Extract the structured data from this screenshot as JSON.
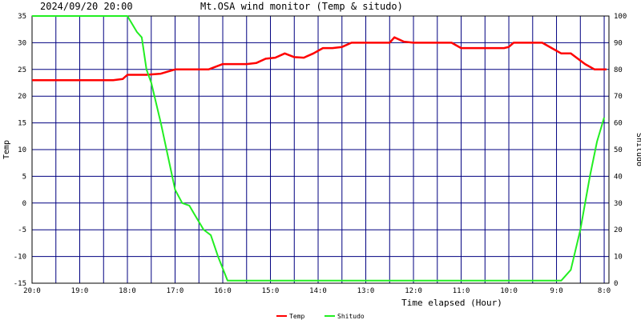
{
  "chart_data": {
    "type": "line",
    "title": "2024/09/20 20:00",
    "subtitle": "Mt.OSA wind monitor (Temp & situdo)",
    "xlabel": "Time elapsed (Hour)",
    "ylabel_left": "Temp",
    "ylabel_right": "Shitudo",
    "ylim_left": [
      -15,
      35
    ],
    "ylim_right": [
      0,
      100
    ],
    "xlim": [
      20,
      7.9
    ],
    "x_reversed": true,
    "grid": true,
    "legend_position": "bottom-center",
    "y_ticks_left": [
      "35",
      "30",
      "25",
      "20",
      "15",
      "10",
      "5",
      "0",
      "-5",
      "-10",
      "-15"
    ],
    "y_ticks_right": [
      "100",
      "90",
      "80",
      "70",
      "60",
      "50",
      "40",
      "30",
      "20",
      "10",
      "0"
    ],
    "x_ticks": [
      {
        "value": 20,
        "label": "20:0"
      },
      {
        "value": 19,
        "label": "19:0"
      },
      {
        "value": 18,
        "label": "18:0"
      },
      {
        "value": 17,
        "label": "17:0"
      },
      {
        "value": 16,
        "label": "16:0"
      },
      {
        "value": 15,
        "label": "15:0"
      },
      {
        "value": 14,
        "label": "14:0"
      },
      {
        "value": 13,
        "label": "13:0"
      },
      {
        "value": 12,
        "label": "12:0"
      },
      {
        "value": 11,
        "label": "11:0"
      },
      {
        "value": 10,
        "label": "10:0"
      },
      {
        "value": 9,
        "label": "9:0"
      },
      {
        "value": 8,
        "label": "8:0"
      }
    ],
    "series": [
      {
        "name": "Temp",
        "axis": "left",
        "color": "#ff0000",
        "x": [
          20,
          19.5,
          19,
          18.5,
          18.3,
          18.1,
          18,
          17.7,
          17.6,
          17.3,
          17,
          16.9,
          16.7,
          16.3,
          16,
          15.9,
          15.7,
          15.5,
          15.3,
          15.1,
          14.9,
          14.7,
          14.5,
          14.3,
          14.1,
          13.9,
          13.7,
          13.5,
          13.3,
          12.5,
          12.4,
          12.2,
          12,
          11.5,
          11.4,
          11.2,
          11,
          10.6,
          10.5,
          10.3,
          10.1,
          10,
          9.9,
          9.7,
          9.5,
          9.3,
          9.1,
          8.9,
          8.7,
          8.4,
          8.2,
          8,
          7.95
        ],
        "values": [
          23,
          23,
          23,
          23,
          23,
          23.2,
          24,
          24,
          24,
          24.2,
          25,
          25,
          25,
          25,
          26,
          26,
          26,
          26,
          26.2,
          27,
          27.2,
          28,
          27.3,
          27.2,
          28,
          29,
          29,
          29.2,
          30,
          30,
          31,
          30.2,
          30,
          30,
          30,
          30,
          29,
          29,
          29,
          29,
          29,
          29.2,
          30,
          30,
          30,
          30,
          29,
          28,
          28,
          26,
          25,
          25,
          25
        ]
      },
      {
        "name": "Shitudo",
        "axis": "right",
        "color": "#22ee22",
        "x": [
          20,
          19.5,
          19,
          18.5,
          18,
          17.8,
          17.7,
          17.6,
          17.5,
          17.3,
          17,
          16.85,
          16.7,
          16.6,
          16.4,
          16.25,
          16.1,
          15.9,
          15.5,
          15,
          14.5,
          14,
          13.5,
          13,
          12.5,
          12,
          11.5,
          11,
          10.5,
          10,
          9.5,
          9.2,
          9,
          8.9,
          8.7,
          8.5,
          8.3,
          8.15,
          8
        ],
        "values": [
          100,
          100,
          100,
          100,
          100,
          94,
          92,
          80,
          75,
          60,
          35,
          30,
          29,
          26,
          20,
          18,
          10,
          1,
          1,
          1,
          1,
          1,
          1,
          1,
          1,
          1,
          1,
          1,
          1,
          1,
          1,
          1,
          1,
          1,
          5,
          20,
          40,
          53,
          62
        ]
      }
    ]
  }
}
